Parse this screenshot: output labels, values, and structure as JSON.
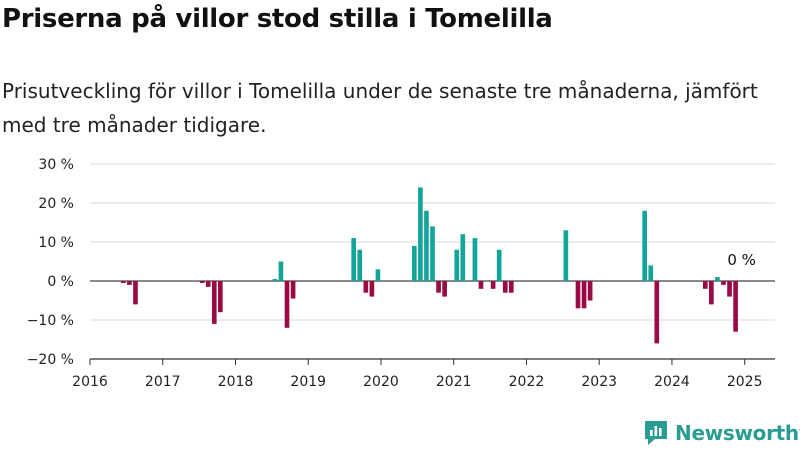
{
  "title": "Priserna på villor stod stilla i Tomelilla",
  "subtitle": "Prisutveckling för villor i Tomelilla under de senaste tre månaderna, jämfört med tre månader tidigare.",
  "brand": "Newsworthy",
  "colors": {
    "positive": "#13a49a",
    "negative": "#9a0b46",
    "brand": "#2a9d92"
  },
  "chart_data": {
    "type": "bar",
    "ylim": [
      -20,
      30
    ],
    "yticks": [
      -20,
      -10,
      0,
      10,
      20,
      30
    ],
    "ytick_labels": [
      "−20 %",
      "−10 %",
      "0 %",
      "10 %",
      "20 %",
      "30 %"
    ],
    "xlim": [
      "2016-01",
      "2025-06"
    ],
    "xticks": [
      2016,
      2017,
      2018,
      2019,
      2020,
      2021,
      2022,
      2023,
      2024,
      2025
    ],
    "xtick_labels": [
      "2016",
      "2017",
      "2018",
      "2019",
      "2020",
      "2021",
      "2022",
      "2023",
      "2024",
      "2025"
    ],
    "grid": true,
    "annotation": {
      "date": "2024-12",
      "value": 0,
      "label": "0 %"
    },
    "series": [
      {
        "values": [
          {
            "date": "2016-06",
            "value": -0.5
          },
          {
            "date": "2016-07",
            "value": -1
          },
          {
            "date": "2016-08",
            "value": -6
          },
          {
            "date": "2017-07",
            "value": -0.5
          },
          {
            "date": "2017-08",
            "value": -1.5
          },
          {
            "date": "2017-09",
            "value": -11
          },
          {
            "date": "2017-10",
            "value": -8
          },
          {
            "date": "2018-07",
            "value": 0.5
          },
          {
            "date": "2018-08",
            "value": 5
          },
          {
            "date": "2018-09",
            "value": -12
          },
          {
            "date": "2018-10",
            "value": -4.5
          },
          {
            "date": "2019-08",
            "value": 11
          },
          {
            "date": "2019-09",
            "value": 8
          },
          {
            "date": "2019-10",
            "value": -3
          },
          {
            "date": "2019-11",
            "value": -4
          },
          {
            "date": "2019-12",
            "value": 3
          },
          {
            "date": "2020-06",
            "value": 9
          },
          {
            "date": "2020-07",
            "value": 24
          },
          {
            "date": "2020-08",
            "value": 18
          },
          {
            "date": "2020-09",
            "value": 14
          },
          {
            "date": "2020-10",
            "value": -3
          },
          {
            "date": "2020-11",
            "value": -4
          },
          {
            "date": "2021-01",
            "value": 8
          },
          {
            "date": "2021-02",
            "value": 12
          },
          {
            "date": "2021-04",
            "value": 11
          },
          {
            "date": "2021-05",
            "value": -2
          },
          {
            "date": "2021-07",
            "value": -2
          },
          {
            "date": "2021-08",
            "value": 8
          },
          {
            "date": "2021-09",
            "value": -3
          },
          {
            "date": "2021-10",
            "value": -3
          },
          {
            "date": "2022-07",
            "value": 13
          },
          {
            "date": "2022-09",
            "value": -7
          },
          {
            "date": "2022-10",
            "value": -7
          },
          {
            "date": "2022-11",
            "value": -5
          },
          {
            "date": "2023-08",
            "value": 18
          },
          {
            "date": "2023-09",
            "value": 4
          },
          {
            "date": "2023-10",
            "value": -16
          },
          {
            "date": "2024-06",
            "value": -2
          },
          {
            "date": "2024-07",
            "value": -6
          },
          {
            "date": "2024-08",
            "value": 1
          },
          {
            "date": "2024-09",
            "value": -1
          },
          {
            "date": "2024-10",
            "value": -4
          },
          {
            "date": "2024-11",
            "value": -13
          },
          {
            "date": "2024-12",
            "value": 0
          }
        ]
      }
    ]
  }
}
